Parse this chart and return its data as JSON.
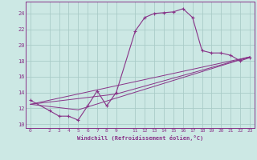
{
  "xlabel": "Windchill (Refroidissement éolien,°C)",
  "bg_color": "#cce8e4",
  "grid_color": "#aaccc8",
  "line_color": "#883388",
  "x_ticks": [
    0,
    2,
    3,
    4,
    5,
    6,
    7,
    8,
    9,
    11,
    12,
    13,
    14,
    15,
    16,
    17,
    18,
    19,
    20,
    21,
    22,
    23
  ],
  "ylim": [
    9.5,
    25.5
  ],
  "xlim": [
    -0.5,
    23.5
  ],
  "yticks": [
    10,
    12,
    14,
    16,
    18,
    20,
    22,
    24
  ],
  "series1_x": [
    0,
    2,
    3,
    4,
    5,
    6,
    7,
    8,
    9,
    11,
    12,
    13,
    14,
    15,
    16,
    17,
    18,
    19,
    20,
    21,
    22,
    23
  ],
  "series1_y": [
    13.0,
    11.7,
    11.0,
    11.0,
    10.5,
    12.3,
    14.2,
    12.3,
    14.0,
    21.8,
    23.5,
    24.0,
    24.1,
    24.2,
    24.6,
    23.5,
    19.3,
    19.0,
    19.0,
    18.7,
    18.0,
    18.4
  ],
  "series2_x": [
    0,
    23
  ],
  "series2_y": [
    12.5,
    18.5
  ],
  "series3_x": [
    0,
    5,
    23
  ],
  "series3_y": [
    12.5,
    11.8,
    18.5
  ],
  "series4_x": [
    0,
    9,
    23
  ],
  "series4_y": [
    12.5,
    13.8,
    18.5
  ]
}
